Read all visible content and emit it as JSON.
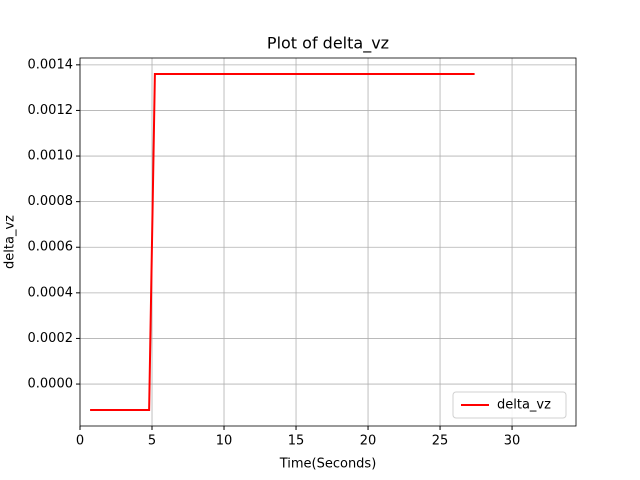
{
  "chart_data": {
    "type": "line",
    "title": "Plot of delta_vz",
    "x_label": "Time(Seconds)",
    "y_label": "delta_vz",
    "series": [
      {
        "name": "delta_vz",
        "color": "#ff0000",
        "x": [
          0.7,
          4.8,
          5.2,
          27.4
        ],
        "values": [
          -0.000114,
          -0.000114,
          0.00136,
          0.00136
        ]
      }
    ],
    "xlim": [
      0,
      34.44
    ],
    "xticks": [
      0,
      5,
      10,
      15,
      20,
      25,
      30
    ],
    "ylim": [
      -0.000184,
      0.00143
    ],
    "yticks": [
      {
        "value": 0,
        "label": "0.0000"
      },
      {
        "value": 0.0002,
        "label": "0.0002"
      },
      {
        "value": 0.0004,
        "label": "0.0004"
      },
      {
        "value": 0.0006,
        "label": "0.0006"
      },
      {
        "value": 0.0008,
        "label": "0.0008"
      },
      {
        "value": 0.001,
        "label": "0.0010"
      },
      {
        "value": 0.0012,
        "label": "0.0012"
      },
      {
        "value": 0.0014,
        "label": "0.0014"
      }
    ],
    "grid": true,
    "legend": "lower right"
  }
}
